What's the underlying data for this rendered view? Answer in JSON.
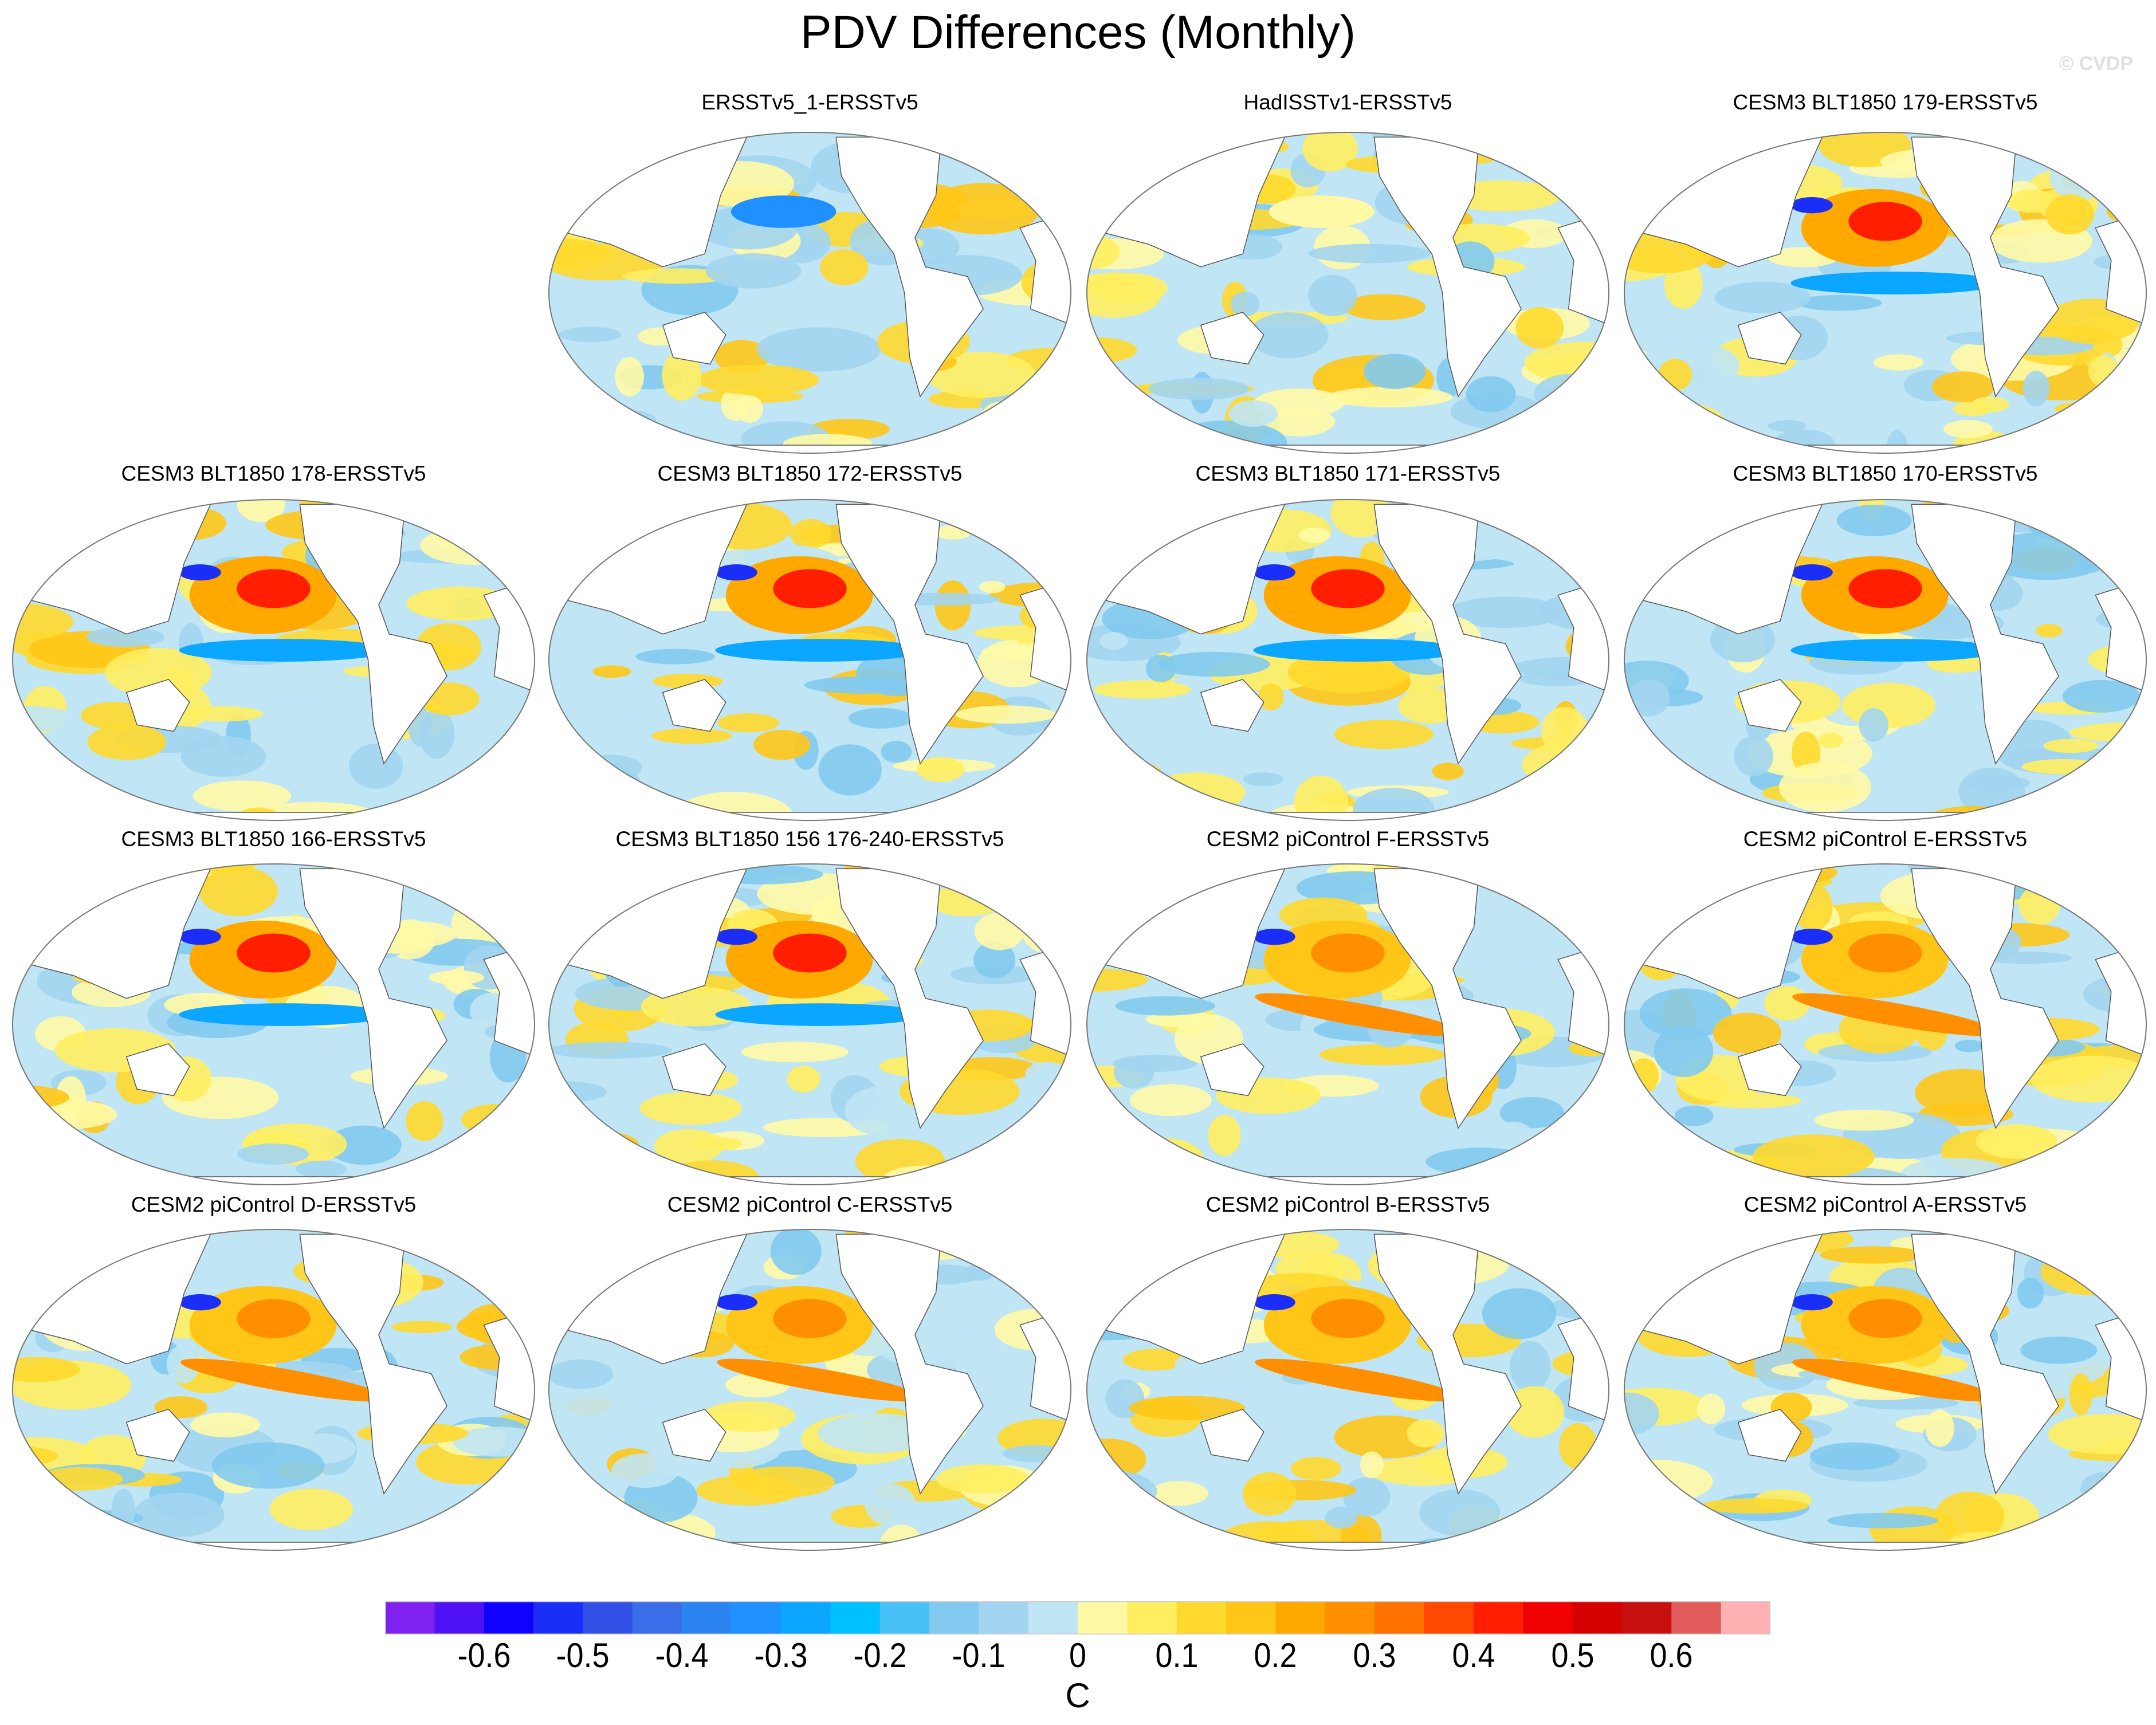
{
  "title": "PDV Differences (Monthly)",
  "watermark": "© CVDP",
  "panels": [
    {
      "title": ""
    },
    {
      "title": "ERSSTv5_1-ERSSTv5"
    },
    {
      "title": "HadISSTv1-ERSSTv5"
    },
    {
      "title": "CESM3 BLT1850 179-ERSSTv5"
    },
    {
      "title": "CESM3 BLT1850 178-ERSSTv5"
    },
    {
      "title": "CESM3 BLT1850 172-ERSSTv5"
    },
    {
      "title": "CESM3 BLT1850 171-ERSSTv5"
    },
    {
      "title": "CESM3 BLT1850 170-ERSSTv5"
    },
    {
      "title": "CESM3 BLT1850 166-ERSSTv5"
    },
    {
      "title": "CESM3 BLT1850 156 176-240-ERSSTv5"
    },
    {
      "title": "CESM2 piControl F-ERSSTv5"
    },
    {
      "title": "CESM2 piControl E-ERSSTv5"
    },
    {
      "title": "CESM2 piControl D-ERSSTv5"
    },
    {
      "title": "CESM2 piControl C-ERSSTv5"
    },
    {
      "title": "CESM2 piControl B-ERSSTv5"
    },
    {
      "title": "CESM2 piControl A-ERSSTv5"
    }
  ],
  "colorbar": {
    "unit": "C",
    "levels_min": -0.65,
    "levels_max": 0.65,
    "level_step": 0.05,
    "tick_labels": [
      "-0.6",
      "-0.5",
      "-0.4",
      "-0.3",
      "-0.2",
      "-0.1",
      "0",
      "0.1",
      "0.2",
      "0.3",
      "0.4",
      "0.5",
      "0.6"
    ],
    "colors": [
      "#7f22ef",
      "#4f12f5",
      "#1001ff",
      "#1a2ef7",
      "#3350e6",
      "#3a6ee8",
      "#2b84f0",
      "#1e90ff",
      "#0ba6ff",
      "#00c0ff",
      "#46c0f5",
      "#82caf0",
      "#a3d5f0",
      "#c0e5f4",
      "#fff9a6",
      "#ffee60",
      "#ffd92e",
      "#ffc617",
      "#ffa800",
      "#ff8f00",
      "#ff7200",
      "#ff4800",
      "#ff1e00",
      "#f00000",
      "#d50000",
      "#c81010",
      "#e25c5c",
      "#ffb0b0"
    ]
  }
}
